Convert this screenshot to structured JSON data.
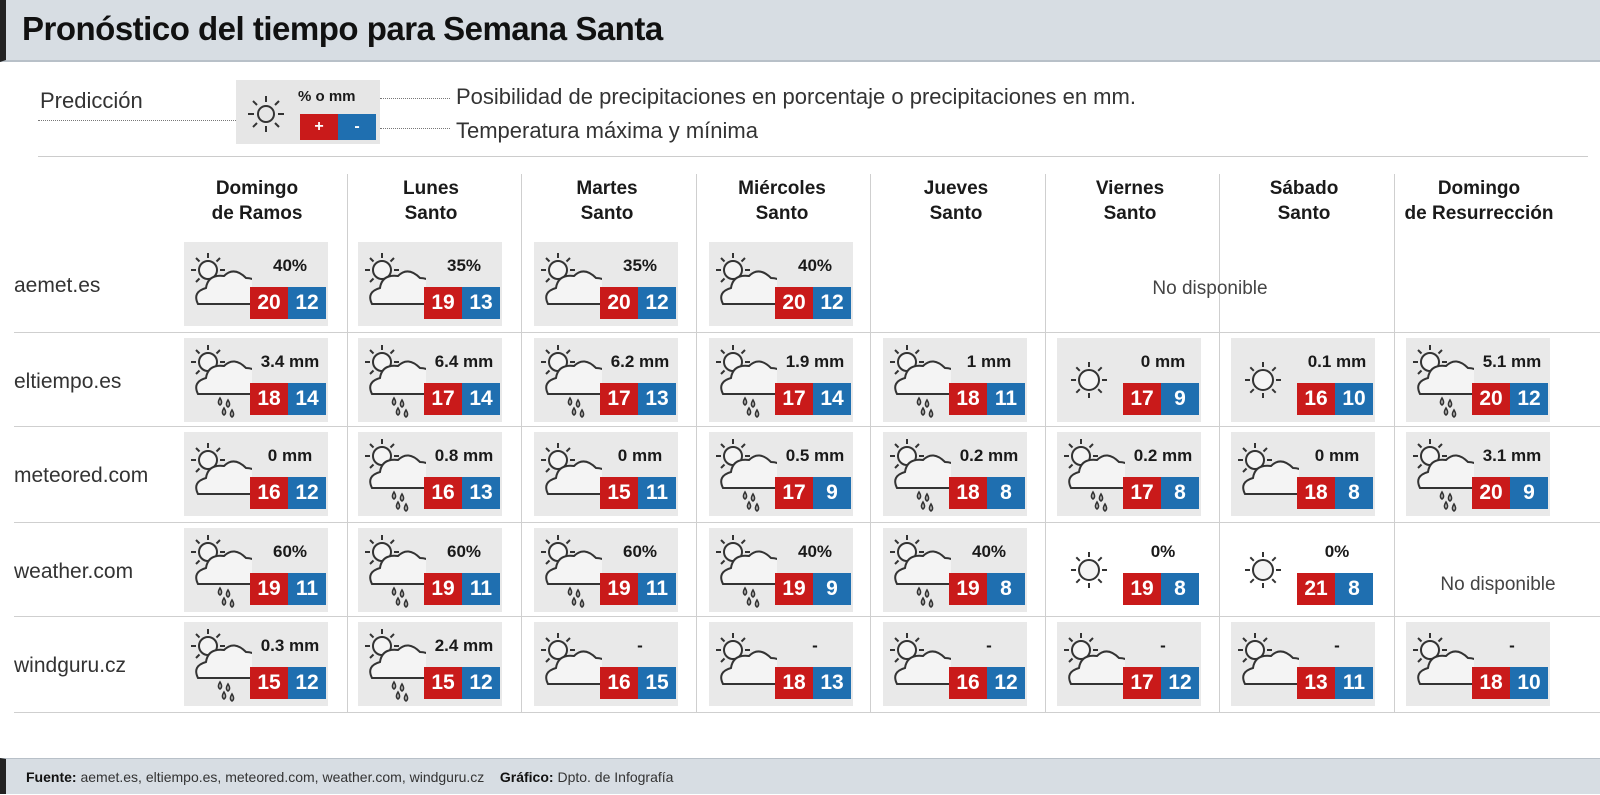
{
  "title": "Pronóstico del tiempo para Semana Santa",
  "legend": {
    "label": "Predicción",
    "pct_label": "% o mm",
    "plus": "+",
    "minus": "-",
    "line1": "Posibilidad de precipitaciones en porcentaje o precipitaciones en mm.",
    "line2": "Temperatura máxima y mínima"
  },
  "days": [
    {
      "l1": "Domingo",
      "l2": "de Ramos"
    },
    {
      "l1": "Lunes",
      "l2": "Santo"
    },
    {
      "l1": "Martes",
      "l2": "Santo"
    },
    {
      "l1": "Miércoles",
      "l2": "Santo"
    },
    {
      "l1": "Jueves",
      "l2": "Santo"
    },
    {
      "l1": "Viernes",
      "l2": "Santo"
    },
    {
      "l1": "Sábado",
      "l2": "Santo"
    },
    {
      "l1": "Domingo",
      "l2": "de Resurrección"
    }
  ],
  "not_available": "No disponible",
  "sources": [
    {
      "name": "aemet.es",
      "cells": [
        {
          "icon": "cloud-sun",
          "prec": "40%",
          "max": "20",
          "min": "12"
        },
        {
          "icon": "cloud-sun",
          "prec": "35%",
          "max": "19",
          "min": "13"
        },
        {
          "icon": "cloud-sun",
          "prec": "35%",
          "max": "20",
          "min": "12"
        },
        {
          "icon": "cloud-sun",
          "prec": "40%",
          "max": "20",
          "min": "12"
        },
        null,
        null,
        null,
        null
      ]
    },
    {
      "name": "eltiempo.es",
      "cells": [
        {
          "icon": "rain",
          "prec": "3.4 mm",
          "max": "18",
          "min": "14"
        },
        {
          "icon": "rain",
          "prec": "6.4 mm",
          "max": "17",
          "min": "14"
        },
        {
          "icon": "rain",
          "prec": "6.2 mm",
          "max": "17",
          "min": "13"
        },
        {
          "icon": "rain",
          "prec": "1.9 mm",
          "max": "17",
          "min": "14"
        },
        {
          "icon": "rain",
          "prec": "1 mm",
          "max": "18",
          "min": "11"
        },
        {
          "icon": "sun",
          "prec": "0 mm",
          "max": "17",
          "min": "9"
        },
        {
          "icon": "sun",
          "prec": "0.1 mm",
          "max": "16",
          "min": "10"
        },
        {
          "icon": "rain",
          "prec": "5.1 mm",
          "max": "20",
          "min": "12"
        }
      ]
    },
    {
      "name": "meteored.com",
      "cells": [
        {
          "icon": "cloud-sun",
          "prec": "0 mm",
          "max": "16",
          "min": "12"
        },
        {
          "icon": "rain",
          "prec": "0.8 mm",
          "max": "16",
          "min": "13"
        },
        {
          "icon": "cloud-sun",
          "prec": "0 mm",
          "max": "15",
          "min": "11"
        },
        {
          "icon": "rain",
          "prec": "0.5 mm",
          "max": "17",
          "min": "9"
        },
        {
          "icon": "rain",
          "prec": "0.2 mm",
          "max": "18",
          "min": "8"
        },
        {
          "icon": "rain",
          "prec": "0.2 mm",
          "max": "17",
          "min": "8"
        },
        {
          "icon": "cloud-sun",
          "prec": "0 mm",
          "max": "18",
          "min": "8"
        },
        {
          "icon": "rain",
          "prec": "3.1 mm",
          "max": "20",
          "min": "9"
        }
      ]
    },
    {
      "name": "weather.com",
      "cells": [
        {
          "icon": "rain",
          "prec": "60%",
          "max": "19",
          "min": "11"
        },
        {
          "icon": "rain",
          "prec": "60%",
          "max": "19",
          "min": "11"
        },
        {
          "icon": "rain",
          "prec": "60%",
          "max": "19",
          "min": "11"
        },
        {
          "icon": "rain",
          "prec": "40%",
          "max": "19",
          "min": "9"
        },
        {
          "icon": "rain",
          "prec": "40%",
          "max": "19",
          "min": "8"
        },
        {
          "icon": "sun",
          "prec": "0%",
          "max": "19",
          "min": "8",
          "plain": true
        },
        {
          "icon": "sun",
          "prec": "0%",
          "max": "21",
          "min": "8",
          "plain": true
        },
        null
      ]
    },
    {
      "name": "windguru.cz",
      "cells": [
        {
          "icon": "rain",
          "prec": "0.3 mm",
          "max": "15",
          "min": "12"
        },
        {
          "icon": "rain",
          "prec": "2.4 mm",
          "max": "15",
          "min": "12"
        },
        {
          "icon": "cloud-sun",
          "prec": "-",
          "max": "16",
          "min": "15"
        },
        {
          "icon": "cloud-sun",
          "prec": "-",
          "max": "18",
          "min": "13"
        },
        {
          "icon": "cloud-sun",
          "prec": "-",
          "max": "16",
          "min": "12"
        },
        {
          "icon": "cloud-sun",
          "prec": "-",
          "max": "17",
          "min": "12"
        },
        {
          "icon": "cloud-sun",
          "prec": "-",
          "max": "13",
          "min": "11"
        },
        {
          "icon": "cloud-sun",
          "prec": "-",
          "max": "18",
          "min": "10"
        }
      ]
    }
  ],
  "footer": {
    "source_label": "Fuente:",
    "source_text": "aemet.es, eltiempo.es, meteored.com, weather.com, windguru.cz",
    "graphic_label": "Gráfico:",
    "graphic_text": "Dpto. de Infografía"
  },
  "colors": {
    "max": "#c91a1a",
    "min": "#1f6fb0",
    "header": "#d7dde3"
  }
}
